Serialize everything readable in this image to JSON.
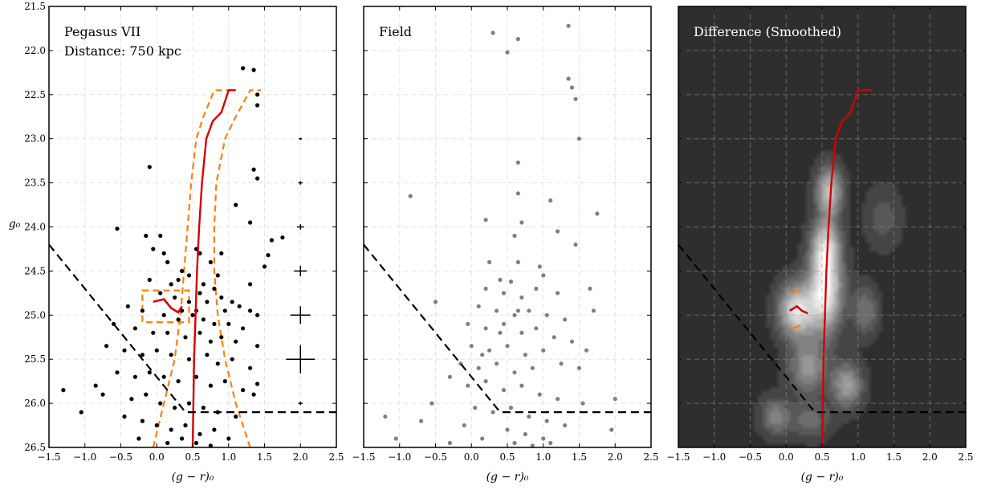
{
  "chart_data": [
    {
      "type": "scatter",
      "title": "Pegasus VII",
      "subtitle": "Distance: 750 kpc",
      "title_color": "#000000",
      "xlabel": "(g − r)₀",
      "ylabel": "g₀",
      "xlim": [
        -1.5,
        2.5
      ],
      "ylim": [
        26.5,
        21.5
      ],
      "y_inverted": true,
      "grid": true,
      "x_ticks": [
        "−1.5",
        "−1.0",
        "−0.5",
        "0.0",
        "0.5",
        "1.0",
        "1.5",
        "2.0",
        "2.5"
      ],
      "y_ticks": [
        "21.5",
        "22.0",
        "22.5",
        "23.0",
        "23.5",
        "24.0",
        "24.5",
        "25.0",
        "25.5",
        "26.0",
        "26.5"
      ],
      "point_color": "#000000",
      "points": [
        [
          1.2,
          22.2
        ],
        [
          1.35,
          22.22
        ],
        [
          1.4,
          22.5
        ],
        [
          1.4,
          22.62
        ],
        [
          1.35,
          23.35
        ],
        [
          1.4,
          23.45
        ],
        [
          -0.1,
          23.32
        ],
        [
          1.1,
          23.75
        ],
        [
          1.3,
          23.95
        ],
        [
          -0.55,
          24.02
        ],
        [
          -0.15,
          24.1
        ],
        [
          0.05,
          24.1
        ],
        [
          0.9,
          24.3
        ],
        [
          1.6,
          24.15
        ],
        [
          1.75,
          24.12
        ],
        [
          1.55,
          24.32
        ],
        [
          1.5,
          24.45
        ],
        [
          1.3,
          24.65
        ],
        [
          -0.05,
          24.25
        ],
        [
          0.1,
          24.3
        ],
        [
          0.15,
          24.4
        ],
        [
          0.35,
          24.5
        ],
        [
          0.55,
          24.25
        ],
        [
          0.6,
          24.3
        ],
        [
          0.75,
          24.4
        ],
        [
          0.85,
          24.55
        ],
        [
          0.3,
          24.6
        ],
        [
          0.45,
          24.55
        ],
        [
          0.2,
          24.65
        ],
        [
          0.65,
          24.65
        ],
        [
          0.8,
          24.7
        ],
        [
          0.05,
          24.75
        ],
        [
          0.25,
          24.8
        ],
        [
          0.45,
          24.85
        ],
        [
          0.6,
          24.75
        ],
        [
          0.7,
          24.85
        ],
        [
          0.9,
          24.8
        ],
        [
          1.05,
          24.85
        ],
        [
          1.15,
          24.9
        ],
        [
          1.3,
          24.95
        ],
        [
          1.4,
          25.0
        ],
        [
          -0.4,
          24.9
        ],
        [
          -0.2,
          24.95
        ],
        [
          0.1,
          25.0
        ],
        [
          0.3,
          25.05
        ],
        [
          0.5,
          25.0
        ],
        [
          0.65,
          25.05
        ],
        [
          0.8,
          25.1
        ],
        [
          1.0,
          25.1
        ],
        [
          1.2,
          25.15
        ],
        [
          -0.6,
          25.1
        ],
        [
          -0.3,
          25.15
        ],
        [
          -0.05,
          25.2
        ],
        [
          0.15,
          25.2
        ],
        [
          0.4,
          25.25
        ],
        [
          0.6,
          25.2
        ],
        [
          0.75,
          25.3
        ],
        [
          0.9,
          25.25
        ],
        [
          1.1,
          25.3
        ],
        [
          1.4,
          25.35
        ],
        [
          -0.7,
          25.35
        ],
        [
          -0.45,
          25.4
        ],
        [
          -0.2,
          25.45
        ],
        [
          0.0,
          25.4
        ],
        [
          0.2,
          25.45
        ],
        [
          0.45,
          25.5
        ],
        [
          0.7,
          25.45
        ],
        [
          0.85,
          25.55
        ],
        [
          1.05,
          25.5
        ],
        [
          1.3,
          25.6
        ],
        [
          -0.55,
          25.65
        ],
        [
          -0.3,
          25.7
        ],
        [
          -0.1,
          25.65
        ],
        [
          0.1,
          25.7
        ],
        [
          0.3,
          25.75
        ],
        [
          0.55,
          25.7
        ],
        [
          0.75,
          25.8
        ],
        [
          0.95,
          25.75
        ],
        [
          1.2,
          25.85
        ],
        [
          1.35,
          25.9
        ],
        [
          -1.3,
          25.85
        ],
        [
          -1.05,
          26.1
        ],
        [
          -0.85,
          25.8
        ],
        [
          -0.75,
          25.9
        ],
        [
          -0.35,
          25.95
        ],
        [
          -0.15,
          25.9
        ],
        [
          0.05,
          26.0
        ],
        [
          0.25,
          26.05
        ],
        [
          0.45,
          26.0
        ],
        [
          0.65,
          26.05
        ],
        [
          0.85,
          26.1
        ],
        [
          1.1,
          26.15
        ],
        [
          -0.2,
          26.2
        ],
        [
          0.0,
          26.25
        ],
        [
          0.2,
          26.3
        ],
        [
          0.4,
          26.25
        ],
        [
          0.6,
          26.35
        ],
        [
          0.8,
          26.3
        ],
        [
          1.0,
          26.4
        ],
        [
          -0.25,
          26.4
        ],
        [
          0.15,
          26.45
        ],
        [
          0.35,
          26.4
        ],
        [
          0.55,
          26.45
        ],
        [
          0.75,
          26.48
        ],
        [
          -0.45,
          26.15
        ],
        [
          1.4,
          25.78
        ],
        [
          0.95,
          24.95
        ],
        [
          0.35,
          24.95
        ],
        [
          -0.1,
          24.6
        ],
        [
          0.55,
          24.95
        ]
      ],
      "isochrone": [
        [
          0.5,
          26.5
        ],
        [
          0.51,
          26.0
        ],
        [
          0.52,
          25.5
        ],
        [
          0.54,
          25.0
        ],
        [
          0.56,
          24.5
        ],
        [
          0.59,
          24.0
        ],
        [
          0.63,
          23.5
        ],
        [
          0.69,
          23.0
        ],
        [
          0.78,
          22.8
        ],
        [
          0.9,
          22.7
        ],
        [
          1.0,
          22.45
        ],
        [
          1.1,
          22.45
        ]
      ],
      "isochrone_color": "#d40000",
      "hb_track": [
        [
          -0.05,
          24.85
        ],
        [
          0.1,
          24.82
        ],
        [
          0.2,
          24.92
        ],
        [
          0.3,
          24.97
        ],
        [
          0.35,
          24.9
        ]
      ],
      "selection_box_color": "#ff7f0e",
      "selection_left": [
        [
          -0.05,
          26.5
        ],
        [
          0.1,
          26.0
        ],
        [
          0.25,
          25.5
        ],
        [
          0.33,
          25.0
        ],
        [
          0.38,
          24.5
        ],
        [
          0.43,
          24.0
        ],
        [
          0.48,
          23.5
        ],
        [
          0.55,
          23.0
        ],
        [
          0.65,
          22.75
        ],
        [
          0.8,
          22.45
        ],
        [
          1.05,
          22.45
        ]
      ],
      "selection_right": [
        [
          1.3,
          26.5
        ],
        [
          1.1,
          26.0
        ],
        [
          0.95,
          25.5
        ],
        [
          0.85,
          25.0
        ],
        [
          0.8,
          24.5
        ],
        [
          0.8,
          24.0
        ],
        [
          0.83,
          23.5
        ],
        [
          0.95,
          23.0
        ],
        [
          1.1,
          22.75
        ],
        [
          1.3,
          22.45
        ],
        [
          1.45,
          22.45
        ]
      ],
      "hb_box": [
        [
          -0.2,
          24.72
        ],
        [
          0.45,
          24.72
        ],
        [
          0.45,
          25.08
        ],
        [
          -0.2,
          25.08
        ]
      ],
      "cut_line": [
        [
          -1.5,
          24.2
        ],
        [
          0.4,
          26.1
        ],
        [
          2.5,
          26.1
        ]
      ],
      "error_bars": [
        {
          "x": 2.0,
          "y": 23.0,
          "xerr": 0.02,
          "yerr": 0.01
        },
        {
          "x": 2.0,
          "y": 23.5,
          "xerr": 0.03,
          "yerr": 0.02
        },
        {
          "x": 2.0,
          "y": 24.0,
          "xerr": 0.05,
          "yerr": 0.03
        },
        {
          "x": 2.0,
          "y": 24.5,
          "xerr": 0.09,
          "yerr": 0.06
        },
        {
          "x": 2.0,
          "y": 25.0,
          "xerr": 0.14,
          "yerr": 0.1
        },
        {
          "x": 2.0,
          "y": 25.5,
          "xerr": 0.2,
          "yerr": 0.16
        },
        {
          "x": 2.0,
          "y": 26.0,
          "xerr": 0.03,
          "yerr": 0.02
        }
      ]
    },
    {
      "type": "scatter",
      "title": "Field",
      "title_color": "#000000",
      "xlabel": "(g − r)₀",
      "xlim": [
        -1.5,
        2.5
      ],
      "ylim": [
        26.5,
        21.5
      ],
      "y_inverted": true,
      "grid": true,
      "x_ticks": [
        "−1.5",
        "−1.0",
        "−0.5",
        "0.0",
        "0.5",
        "1.0",
        "1.5",
        "2.0",
        "2.5"
      ],
      "point_color": "#808080",
      "points": [
        [
          0.3,
          21.8
        ],
        [
          0.65,
          21.87
        ],
        [
          1.35,
          21.72
        ],
        [
          0.5,
          22.02
        ],
        [
          1.35,
          22.32
        ],
        [
          1.4,
          22.42
        ],
        [
          1.45,
          22.55
        ],
        [
          1.5,
          23.0
        ],
        [
          0.65,
          23.27
        ],
        [
          -0.85,
          23.65
        ],
        [
          0.65,
          23.62
        ],
        [
          1.1,
          23.7
        ],
        [
          0.2,
          23.92
        ],
        [
          0.7,
          23.95
        ],
        [
          1.75,
          23.85
        ],
        [
          1.2,
          24.05
        ],
        [
          0.6,
          24.1
        ],
        [
          1.45,
          24.2
        ],
        [
          0.25,
          24.4
        ],
        [
          0.65,
          24.4
        ],
        [
          0.95,
          24.45
        ],
        [
          1.0,
          24.55
        ],
        [
          0.4,
          24.6
        ],
        [
          0.55,
          24.62
        ],
        [
          -0.5,
          24.85
        ],
        [
          0.2,
          24.7
        ],
        [
          0.45,
          24.75
        ],
        [
          0.7,
          24.8
        ],
        [
          0.9,
          24.7
        ],
        [
          1.2,
          24.75
        ],
        [
          1.65,
          24.7
        ],
        [
          0.1,
          24.9
        ],
        [
          0.35,
          24.95
        ],
        [
          0.6,
          25.0
        ],
        [
          0.8,
          24.95
        ],
        [
          1.05,
          25.0
        ],
        [
          1.3,
          25.05
        ],
        [
          1.7,
          24.95
        ],
        [
          -0.05,
          25.1
        ],
        [
          0.2,
          25.15
        ],
        [
          0.45,
          25.1
        ],
        [
          0.7,
          25.2
        ],
        [
          0.9,
          25.15
        ],
        [
          1.15,
          25.25
        ],
        [
          1.4,
          25.3
        ],
        [
          0.0,
          25.35
        ],
        [
          0.25,
          25.4
        ],
        [
          0.5,
          25.35
        ],
        [
          0.75,
          25.45
        ],
        [
          1.0,
          25.4
        ],
        [
          1.6,
          25.4
        ],
        [
          -0.15,
          25.55
        ],
        [
          0.1,
          25.6
        ],
        [
          0.35,
          25.55
        ],
        [
          0.6,
          25.65
        ],
        [
          0.85,
          25.6
        ],
        [
          1.25,
          25.55
        ],
        [
          1.5,
          25.6
        ],
        [
          -0.3,
          25.7
        ],
        [
          -0.05,
          25.8
        ],
        [
          0.2,
          25.75
        ],
        [
          0.45,
          25.85
        ],
        [
          0.7,
          25.8
        ],
        [
          0.95,
          25.9
        ],
        [
          1.2,
          25.95
        ],
        [
          1.55,
          26.0
        ],
        [
          2.0,
          25.95
        ],
        [
          -0.55,
          26.0
        ],
        [
          0.05,
          26.05
        ],
        [
          0.3,
          26.1
        ],
        [
          0.55,
          26.05
        ],
        [
          0.8,
          26.15
        ],
        [
          1.05,
          26.2
        ],
        [
          1.3,
          26.25
        ],
        [
          -1.2,
          26.15
        ],
        [
          -0.7,
          26.2
        ],
        [
          -0.1,
          26.25
        ],
        [
          0.5,
          26.3
        ],
        [
          0.75,
          26.35
        ],
        [
          1.0,
          26.4
        ],
        [
          1.95,
          26.3
        ],
        [
          -1.05,
          26.4
        ],
        [
          -0.3,
          26.45
        ],
        [
          0.15,
          26.4
        ],
        [
          0.6,
          26.45
        ],
        [
          0.85,
          26.48
        ],
        [
          1.1,
          26.45
        ],
        [
          0.4,
          25.2
        ],
        [
          0.15,
          25.45
        ],
        [
          0.65,
          24.95
        ]
      ],
      "cut_line": [
        [
          -1.5,
          24.2
        ],
        [
          0.4,
          26.1
        ],
        [
          2.5,
          26.1
        ]
      ]
    },
    {
      "type": "heatmap",
      "title": "Difference (Smoothed)",
      "title_color": "#ffffff",
      "xlabel": "(g − r)₀",
      "xlim": [
        -1.5,
        2.5
      ],
      "ylim": [
        26.5,
        21.5
      ],
      "y_inverted": true,
      "grid": true,
      "x_ticks": [
        "−1.5",
        "−1.0",
        "−0.5",
        "0.0",
        "0.5",
        "1.0",
        "1.5",
        "2.0",
        "2.5"
      ],
      "background_color": "#2f2f2f",
      "blobs": [
        {
          "x": 0.55,
          "y": 24.7,
          "sx": 0.16,
          "sy": 0.35,
          "amp": 0.95
        },
        {
          "x": 0.15,
          "y": 24.95,
          "sx": 0.18,
          "sy": 0.22,
          "amp": 0.85
        },
        {
          "x": 0.6,
          "y": 23.6,
          "sx": 0.13,
          "sy": 0.2,
          "amp": 0.7
        },
        {
          "x": 0.55,
          "y": 24.2,
          "sx": 0.14,
          "sy": 0.2,
          "amp": 0.55
        },
        {
          "x": 0.85,
          "y": 25.8,
          "sx": 0.15,
          "sy": 0.18,
          "amp": 0.55
        },
        {
          "x": 0.3,
          "y": 25.6,
          "sx": 0.18,
          "sy": 0.2,
          "amp": 0.5
        },
        {
          "x": -0.15,
          "y": 26.15,
          "sx": 0.15,
          "sy": 0.15,
          "amp": 0.4
        },
        {
          "x": 1.1,
          "y": 24.95,
          "sx": 0.13,
          "sy": 0.2,
          "amp": 0.35
        },
        {
          "x": 1.35,
          "y": 23.9,
          "sx": 0.18,
          "sy": 0.25,
          "amp": 0.2
        },
        {
          "x": 0.35,
          "y": 26.2,
          "sx": 0.2,
          "sy": 0.15,
          "amp": 0.3
        }
      ],
      "isochrone": [
        [
          0.5,
          26.5
        ],
        [
          0.51,
          26.0
        ],
        [
          0.52,
          25.5
        ],
        [
          0.54,
          25.0
        ],
        [
          0.56,
          24.5
        ],
        [
          0.59,
          24.0
        ],
        [
          0.63,
          23.5
        ],
        [
          0.69,
          23.0
        ],
        [
          0.78,
          22.8
        ],
        [
          0.9,
          22.7
        ],
        [
          1.0,
          22.45
        ],
        [
          1.1,
          22.45
        ],
        [
          1.2,
          22.45
        ]
      ],
      "isochrone_color": "#d40000",
      "hb_track": [
        [
          0.05,
          24.95
        ],
        [
          0.15,
          24.9
        ],
        [
          0.22,
          24.95
        ],
        [
          0.3,
          24.98
        ]
      ],
      "hb_marks": [
        [
          0.08,
          24.75
        ],
        [
          0.2,
          24.72
        ],
        [
          0.08,
          25.15
        ],
        [
          0.2,
          25.12
        ]
      ],
      "cut_line": [
        [
          -1.5,
          24.2
        ],
        [
          0.4,
          26.1
        ],
        [
          2.5,
          26.1
        ]
      ]
    }
  ]
}
